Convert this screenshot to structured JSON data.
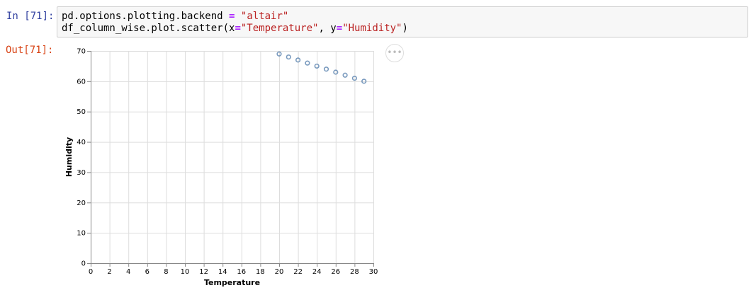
{
  "cell": {
    "in_prompt": "In [71]:",
    "out_prompt": "Out[71]:",
    "code_line1": {
      "part1": "pd.options.plotting.backend ",
      "op": "=",
      "part2": " ",
      "str": "\"altair\""
    },
    "code_line2": {
      "part1": "df_column_wise.plot.scatter(x",
      "op1": "=",
      "str1": "\"Temperature\"",
      "part2": ", y",
      "op2": "=",
      "str2": "\"Humidity\"",
      "part3": ")"
    },
    "actions_label": "•••"
  },
  "colors": {
    "point_stroke": "#4c78a8",
    "grid": "#dddddd",
    "axis": "#888888",
    "in_prompt": "#303f9f",
    "out_prompt": "#d84315"
  },
  "chart_data": {
    "type": "scatter",
    "xlabel": "Temperature",
    "ylabel": "Humidity",
    "xlim": [
      0,
      30
    ],
    "ylim": [
      0,
      70
    ],
    "xticks": [
      0,
      2,
      4,
      6,
      8,
      10,
      12,
      14,
      16,
      18,
      20,
      22,
      24,
      26,
      28,
      30
    ],
    "yticks": [
      0,
      10,
      20,
      30,
      40,
      50,
      60,
      70
    ],
    "grid": true,
    "x": [
      20,
      21,
      22,
      23,
      24,
      25,
      26,
      27,
      28,
      29
    ],
    "y": [
      69,
      68,
      67,
      66,
      65,
      64,
      63,
      62,
      61,
      60
    ]
  }
}
